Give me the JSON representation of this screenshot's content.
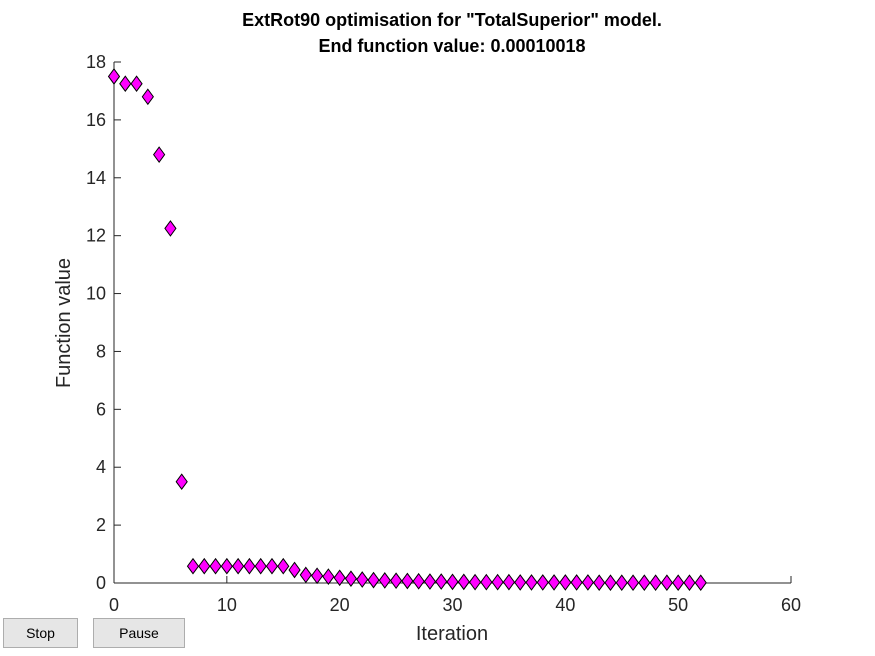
{
  "chart_data": {
    "type": "scatter",
    "title_line1": "ExtRot90 optimisation for \"TotalSuperior\" model.",
    "title_line2": "End function value: 0.00010018",
    "xlabel": "Iteration",
    "ylabel": "Function value",
    "xlim": [
      0,
      60
    ],
    "ylim": [
      0,
      18
    ],
    "xticks": [
      0,
      10,
      20,
      30,
      40,
      50,
      60
    ],
    "yticks": [
      0,
      2,
      4,
      6,
      8,
      10,
      12,
      14,
      16,
      18
    ],
    "grid": false,
    "marker": "diamond",
    "marker_color": "#ff00ff",
    "marker_edge_color": "#000000",
    "x": [
      0,
      1,
      2,
      3,
      4,
      5,
      6,
      7,
      8,
      9,
      10,
      11,
      12,
      13,
      14,
      15,
      16,
      17,
      18,
      19,
      20,
      21,
      22,
      23,
      24,
      25,
      26,
      27,
      28,
      29,
      30,
      31,
      32,
      33,
      34,
      35,
      36,
      37,
      38,
      39,
      40,
      41,
      42,
      43,
      44,
      45,
      46,
      47,
      48,
      49,
      50,
      51,
      52
    ],
    "y": [
      17.5,
      17.25,
      17.25,
      16.8,
      14.8,
      12.25,
      3.5,
      0.58,
      0.58,
      0.58,
      0.58,
      0.58,
      0.58,
      0.58,
      0.58,
      0.58,
      0.45,
      0.28,
      0.25,
      0.22,
      0.18,
      0.15,
      0.12,
      0.1,
      0.09,
      0.08,
      0.07,
      0.06,
      0.05,
      0.05,
      0.04,
      0.04,
      0.03,
      0.03,
      0.03,
      0.03,
      0.02,
      0.02,
      0.02,
      0.02,
      0.02,
      0.02,
      0.02,
      0.01,
      0.01,
      0.01,
      0.01,
      0.01,
      0.01,
      0.01,
      0.01,
      0.01,
      0.01
    ]
  },
  "controls": {
    "stop_label": "Stop",
    "pause_label": "Pause"
  }
}
